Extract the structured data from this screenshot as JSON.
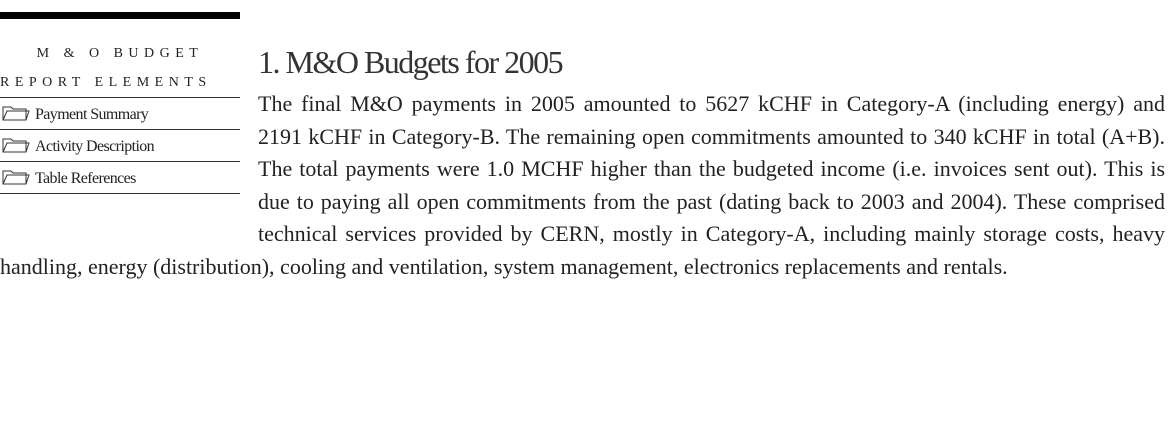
{
  "sidebar": {
    "heading": [
      "M & O BUDGET",
      "REPORT ELEMENTS"
    ],
    "items": [
      "Payment Summary",
      "Activity Description",
      "Table References"
    ]
  },
  "section": {
    "title": "1. M&O Budgets for 2005",
    "body": "The final M&O payments in 2005 amounted to 5627 kCHF in Category-A (including energy) and 2191 kCHF in Category-B. The remaining open commitments amounted to 340 kCHF in total (A+B). The total payments were 1.0 MCHF higher than the budgeted income (i.e. invoices sent out).  This is due to paying all open commitments from the past (dating back to 2003 and 2004). These comprised technical services provided by CERN, mostly in Category-A, including mainly storage costs, heavy handling, energy (distribution), cooling and ventilation, system management, electronics replacements and rentals."
  }
}
